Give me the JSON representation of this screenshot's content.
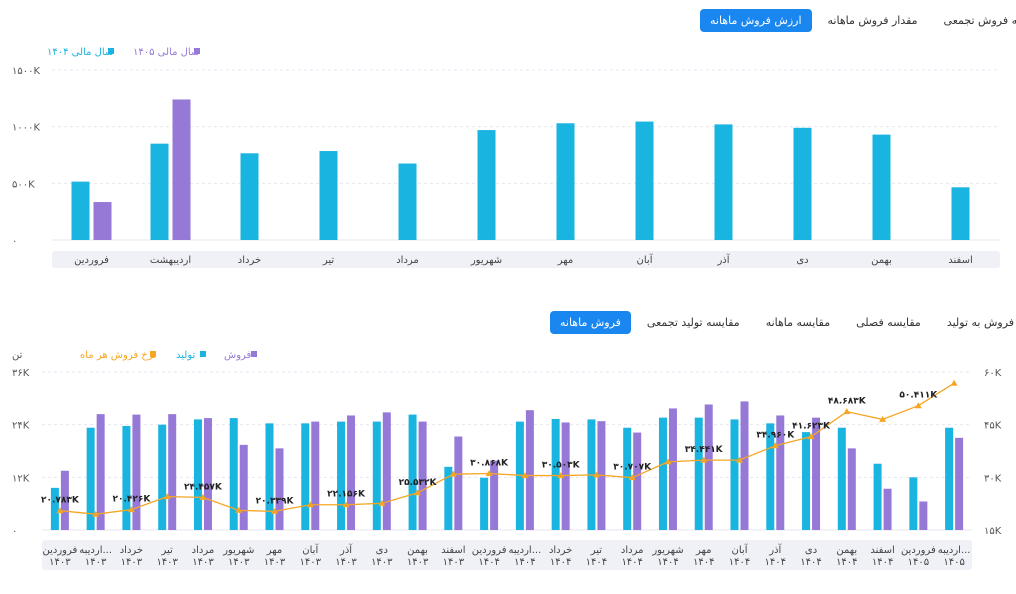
{
  "top_tabs": [
    "ارزش فروش ماهانه",
    "مقدار فروش ماهانه",
    "مقایسه فروش تجمعی"
  ],
  "bottom_tabs": [
    "فروش ماهانه",
    "مقایسه تولید تجمعی",
    "مقایسه ماهانه",
    "مقایسه فصلی",
    "نسبت فروش به تولید"
  ],
  "colors": {
    "cyan": "#1ab4e0",
    "purple": "#9679d6",
    "orange": "#f5a623",
    "accent": "#1a86f0"
  },
  "chart_data": [
    {
      "type": "bar",
      "legend": [
        "سال مالی ۱۴۰۴",
        "سال مالی ۱۴۰۵"
      ],
      "y_ticks": [
        "۱۵۰۰K",
        "۱۰۰۰K",
        "۵۰۰K",
        "۰"
      ],
      "ylim": [
        0,
        1500
      ],
      "categories": [
        "فروردین",
        "اردیبهشت",
        "خرداد",
        "تیر",
        "مرداد",
        "شهریور",
        "مهر",
        "آبان",
        "آذر",
        "دی",
        "بهمن",
        "اسفند"
      ],
      "series": [
        {
          "name": "سال مالی ۱۴۰۴",
          "values": [
            515,
            850,
            765,
            785,
            675,
            970,
            1030,
            1045,
            1020,
            990,
            930,
            465
          ]
        },
        {
          "name": "سال مالی ۱۴۰۵",
          "values": [
            335,
            1240,
            null,
            null,
            null,
            null,
            null,
            null,
            null,
            null,
            null,
            null
          ]
        }
      ]
    },
    {
      "type": "bar",
      "legend": [
        "فروش",
        "تولید",
        "نرخ فروش هر ماه"
      ],
      "y_unit": "تن",
      "y_ticks": [
        "۳۶K",
        "۲۴K",
        "۱۲K",
        "۰"
      ],
      "ylim": [
        0,
        36
      ],
      "y2_ticks": [
        "۶۰K",
        "۴۵K",
        "۳۰K",
        "۱۵K"
      ],
      "y2lim": [
        15,
        60
      ],
      "categories": [
        [
          "فروردین",
          "۱۴۰۳"
        ],
        [
          "اردیبه...",
          "۱۴۰۳"
        ],
        [
          "خرداد",
          "۱۴۰۳"
        ],
        [
          "تیر",
          "۱۴۰۳"
        ],
        [
          "مرداد",
          "۱۴۰۳"
        ],
        [
          "شهریور",
          "۱۴۰۳"
        ],
        [
          "مهر",
          "۱۴۰۳"
        ],
        [
          "آبان",
          "۱۴۰۳"
        ],
        [
          "آذر",
          "۱۴۰۳"
        ],
        [
          "دی",
          "۱۴۰۳"
        ],
        [
          "بهمن",
          "۱۴۰۳"
        ],
        [
          "اسفند",
          "۱۴۰۳"
        ],
        [
          "فروردین",
          "۱۴۰۴"
        ],
        [
          "اردیبه...",
          "۱۴۰۴"
        ],
        [
          "خرداد",
          "۱۴۰۴"
        ],
        [
          "تیر",
          "۱۴۰۴"
        ],
        [
          "مرداد",
          "۱۴۰۴"
        ],
        [
          "شهریور",
          "۱۴۰۴"
        ],
        [
          "مهر",
          "۱۴۰۴"
        ],
        [
          "آبان",
          "۱۴۰۴"
        ],
        [
          "آذر",
          "۱۴۰۴"
        ],
        [
          "دی",
          "۱۴۰۴"
        ],
        [
          "بهمن",
          "۱۴۰۴"
        ],
        [
          "اسفند",
          "۱۴۰۴"
        ],
        [
          "فروردین",
          "۱۴۰۵"
        ],
        [
          "اردیبه...",
          "۱۴۰۵"
        ]
      ],
      "series": [
        {
          "name": "تولید",
          "values": [
            9.6,
            23.3,
            23.7,
            24.0,
            25.2,
            25.5,
            24.3,
            24.3,
            24.7,
            24.7,
            26.3,
            14.4,
            11.9,
            24.7,
            25.3,
            25.2,
            23.3,
            25.6,
            25.6,
            25.2,
            24.3,
            22.3,
            23.3,
            15.1,
            12.0,
            23.3
          ]
        },
        {
          "name": "فروش",
          "values": [
            13.5,
            26.4,
            26.3,
            26.4,
            25.5,
            19.4,
            18.6,
            24.7,
            26.1,
            26.8,
            24.7,
            21.3,
            15.8,
            27.3,
            24.5,
            24.8,
            22.2,
            27.7,
            28.6,
            29.3,
            26.1,
            25.6,
            18.6,
            9.4,
            6.5,
            21.0
          ]
        },
        {
          "name": "نرخ فروش هر ماه",
          "values": [
            20.5,
            19.5,
            20.8,
            24.5,
            24.3,
            20.6,
            20.3,
            22.2,
            22.2,
            22.6,
            25.6,
            30.9,
            31.1,
            30.5,
            30.5,
            30.7,
            29.9,
            34.4,
            34.9,
            34.9,
            39.0,
            41.6,
            48.7,
            46.5,
            50.4,
            56.8
          ]
        }
      ],
      "data_labels": [
        "۲۰.۷۸۳K",
        "۲۰.۴۲۶K",
        "۲۴.۴۵۷K",
        "۲۰.۳۳۹K",
        "۲۲.۱۵۶K",
        "۲۵.۵۳۲K",
        "۳۰.۸۶۸K",
        "۳۰.۵۰۳K",
        "۳۰.۷۰۷K",
        "۳۴.۴۴۱K",
        "۳۴.۹۶۰K",
        "۴۱.۶۲۳K",
        "۴۸.۶۸۳K",
        "۵۰.۴۱۱K"
      ]
    }
  ]
}
